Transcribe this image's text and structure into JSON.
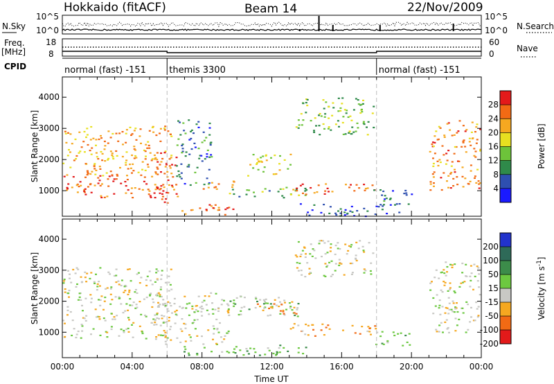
{
  "header": {
    "station": "Hokkaido (fitACF)",
    "beam": "Beam 14",
    "date": "22/Nov/2009"
  },
  "top_panels": {
    "nsky_label": "N.Sky",
    "nsearch_label": "N.Search",
    "nsky_ticks": [
      "10^5",
      "10^0"
    ],
    "nsearch_ticks": [
      "10^5",
      "10^0"
    ],
    "freq_label": "Freq.",
    "freq_unit": "[MHz]",
    "freq_ticks": [
      "18",
      "8"
    ],
    "nave_label": "Nave",
    "nave_ticks": [
      "60",
      "0"
    ],
    "cpid_label": "CPID",
    "cpid_modes": [
      {
        "name": "normal (fast) -151",
        "start_hour": 0,
        "end_hour": 6
      },
      {
        "name": "themis 3300",
        "start_hour": 6,
        "end_hour": 18
      },
      {
        "name": "normal (fast) -151",
        "start_hour": 18,
        "end_hour": 24
      }
    ]
  },
  "chart_data": [
    {
      "type": "heatmap",
      "parameter": "Power",
      "xlabel": "Time UT",
      "ylabel": "Slant Range [km]",
      "xlim": [
        0,
        24
      ],
      "ylim": [
        180,
        4650
      ],
      "x_ticks": [
        "00:00",
        "04:00",
        "08:00",
        "12:00",
        "16:00",
        "20:00",
        "00:00"
      ],
      "y_ticks": [
        1000,
        2000,
        3000,
        4000
      ],
      "colorbar": {
        "label": "Power [dB]",
        "ticks": [
          4,
          8,
          12,
          16,
          20,
          24,
          28
        ],
        "colors": [
          "#1a1aff",
          "#2e4fb0",
          "#2f8a4a",
          "#6dc33a",
          "#e8e020",
          "#f6a820",
          "#f26a14",
          "#e31a1a"
        ]
      },
      "echo_regions": [
        {
          "t0": 0.0,
          "t1": 6.1,
          "r0": 800,
          "r1": 1550,
          "level": 27
        },
        {
          "t0": 0.0,
          "t1": 6.2,
          "r0": 1500,
          "r1": 3100,
          "level": 22
        },
        {
          "t0": 5.2,
          "t1": 6.6,
          "r0": 600,
          "r1": 2300,
          "level": 28
        },
        {
          "t0": 6.5,
          "t1": 8.5,
          "r0": 1200,
          "r1": 3300,
          "level": 8
        },
        {
          "t0": 6.8,
          "t1": 9.8,
          "r0": 250,
          "r1": 650,
          "level": 27
        },
        {
          "t0": 8.0,
          "t1": 10.0,
          "r0": 1050,
          "r1": 1400,
          "level": 20
        },
        {
          "t0": 9.3,
          "t1": 14.0,
          "r0": 800,
          "r1": 1150,
          "level": 11
        },
        {
          "t0": 10.5,
          "t1": 13.2,
          "r0": 1500,
          "r1": 2200,
          "level": 18
        },
        {
          "t0": 13.3,
          "t1": 17.8,
          "r0": 2800,
          "r1": 4000,
          "level": 14
        },
        {
          "t0": 13.0,
          "t1": 18.0,
          "r0": 900,
          "r1": 1250,
          "level": 27
        },
        {
          "t0": 13.5,
          "t1": 19.5,
          "r0": 200,
          "r1": 600,
          "level": 6
        },
        {
          "t0": 17.8,
          "t1": 20.0,
          "r0": 550,
          "r1": 1050,
          "level": 8
        },
        {
          "t0": 21.0,
          "t1": 23.9,
          "r0": 1000,
          "r1": 3300,
          "level": 24
        }
      ]
    },
    {
      "type": "heatmap",
      "parameter": "Velocity",
      "xlabel": "Time UT",
      "ylabel": "Slant Range [km]",
      "xlim": [
        0,
        24
      ],
      "ylim": [
        180,
        4650
      ],
      "x_ticks": [
        "00:00",
        "04:00",
        "08:00",
        "12:00",
        "16:00",
        "20:00",
        "00:00"
      ],
      "y_ticks": [
        1000,
        2000,
        3000,
        4000
      ],
      "colorbar": {
        "label": "Velocity [m s^-1]",
        "ticks": [
          200,
          100,
          50,
          15,
          -15,
          -50,
          -100,
          -200
        ],
        "colors": [
          "#2233cc",
          "#2e6a58",
          "#3c8c4a",
          "#6cc840",
          "#c8c8c4",
          "#f6a820",
          "#f26a14",
          "#e31a1a"
        ]
      },
      "echo_regions": [
        {
          "t0": 0.0,
          "t1": 6.2,
          "r0": 800,
          "r1": 3100,
          "level": 0
        },
        {
          "t0": 5.2,
          "t1": 9.5,
          "r0": 600,
          "r1": 2300,
          "level": 0
        },
        {
          "t0": 6.8,
          "t1": 14.0,
          "r0": 250,
          "r1": 600,
          "level": 40
        },
        {
          "t0": 9.3,
          "t1": 13.5,
          "r0": 1500,
          "r1": 2200,
          "level": 30
        },
        {
          "t0": 11.0,
          "t1": 13.5,
          "r0": 1600,
          "r1": 2100,
          "level": -40
        },
        {
          "t0": 13.0,
          "t1": 18.0,
          "r0": 900,
          "r1": 1300,
          "level": -40
        },
        {
          "t0": 13.3,
          "t1": 17.8,
          "r0": 2800,
          "r1": 4000,
          "level": 0
        },
        {
          "t0": 17.8,
          "t1": 20.0,
          "r0": 550,
          "r1": 1050,
          "level": 30
        },
        {
          "t0": 21.0,
          "t1": 23.9,
          "r0": 1000,
          "r1": 3300,
          "level": 0
        }
      ]
    }
  ]
}
